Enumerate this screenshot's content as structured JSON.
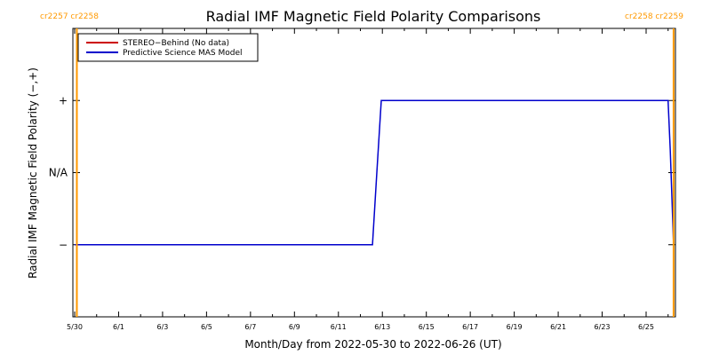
{
  "chart_data": {
    "type": "line",
    "title": "Radial IMF Magnetic Field Polarity Comparisons",
    "xlabel": "Month/Day from 2022-05-30 to 2022-06-26 (UT)",
    "ylabel": "Radial IMF Magnetic Field Polarity (−,+)",
    "xlim": [
      0,
      28
    ],
    "ylim": [
      -2,
      2
    ],
    "x_ticks": [
      {
        "x": 0,
        "label": "5/30"
      },
      {
        "x": 2,
        "label": "6/1"
      },
      {
        "x": 4,
        "label": "6/3"
      },
      {
        "x": 6,
        "label": "6/5"
      },
      {
        "x": 8,
        "label": "6/7"
      },
      {
        "x": 10,
        "label": "6/9"
      },
      {
        "x": 12,
        "label": "6/11"
      },
      {
        "x": 14,
        "label": "6/13"
      },
      {
        "x": 16,
        "label": "6/15"
      },
      {
        "x": 18,
        "label": "6/17"
      },
      {
        "x": 20,
        "label": "6/19"
      },
      {
        "x": 22,
        "label": "6/21"
      },
      {
        "x": 24,
        "label": "6/23"
      },
      {
        "x": 26,
        "label": "6/25"
      }
    ],
    "y_ticks": [
      {
        "y": 1,
        "label": "+"
      },
      {
        "y": 0,
        "label": "N/A"
      },
      {
        "y": -1,
        "label": "−"
      }
    ],
    "legend_position": "top-left",
    "series": [
      {
        "name": "STEREO−Behind (No data)",
        "color": "#cc0000",
        "points": []
      },
      {
        "name": "Predictive Science MAS Model",
        "color": "#0000cc",
        "points": [
          [
            0,
            -1
          ],
          [
            13.55,
            -1
          ],
          [
            13.75,
            0
          ],
          [
            13.95,
            1
          ],
          [
            27.0,
            1
          ],
          [
            27.1,
            0.3
          ],
          [
            27.25,
            -1
          ]
        ]
      }
    ],
    "carrington_markers": [
      {
        "x": 0.1,
        "label": "cr2257 cr2258",
        "side": "left"
      },
      {
        "x": 27.25,
        "label": "cr2258 cr2259",
        "side": "right"
      }
    ],
    "colors": {
      "marker": "#ff9900"
    }
  }
}
